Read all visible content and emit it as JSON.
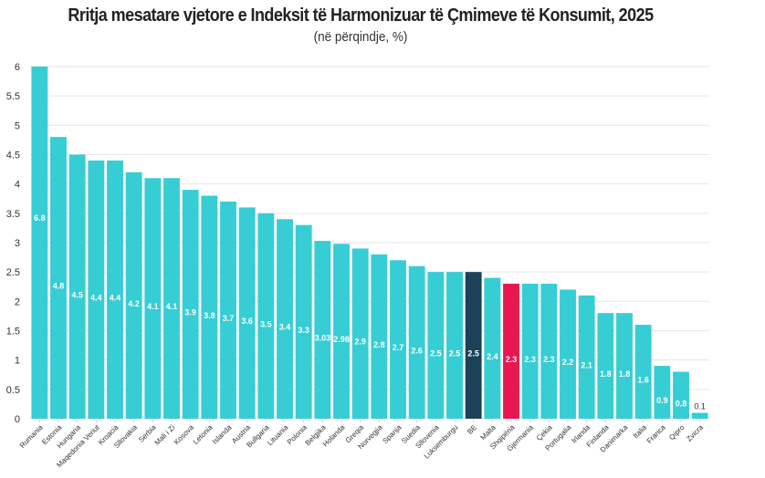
{
  "chart_data": {
    "type": "bar",
    "title": "Rritja mesatare vjetore e Indeksit të Harmonizuar të Çmimeve të Konsumit, 2025",
    "subtitle": "(në përqindje, %)",
    "xlabel": "",
    "ylabel": "",
    "ylim": [
      0,
      6
    ],
    "yticks": [
      0,
      0.5,
      1,
      1.5,
      2,
      2.5,
      3,
      3.5,
      4,
      4.5,
      5,
      5.5,
      6
    ],
    "grid": true,
    "legend": "none",
    "colors": {
      "default": "#37CDD5",
      "highlight_eu": "#1B4258",
      "highlight_albania": "#E8174F"
    },
    "categories": [
      "Rumania",
      "Estonia",
      "Hungaria",
      "Maqedonia Veriut",
      "Kroacia",
      "Sllovakia",
      "Serbia",
      "Mali i Zi",
      "Kosova",
      "Letonia",
      "Islanda",
      "Austria",
      "Bullgaria",
      "Lituania",
      "Polonia",
      "Belgjika",
      "Holanda",
      "Greqia",
      "Norvegjia",
      "Spanja",
      "Suedia",
      "Sllovenia",
      "Luksemburgu",
      "BE",
      "Malta",
      "Shqipëria",
      "Gjermania",
      "Çekia",
      "Portugalia",
      "Irlanda",
      "Finlanda",
      "Danimarka",
      "Italia",
      "Franca",
      "Qipro",
      "Zvicra"
    ],
    "values": [
      6.8,
      4.8,
      4.5,
      4.4,
      4.4,
      4.2,
      4.1,
      4.1,
      3.9,
      3.8,
      3.7,
      3.6,
      3.5,
      3.4,
      3.3,
      3.03,
      2.98,
      2.9,
      2.8,
      2.7,
      2.6,
      2.5,
      2.5,
      2.5,
      2.4,
      2.3,
      2.3,
      2.3,
      2.2,
      2.1,
      1.8,
      1.8,
      1.6,
      0.9,
      0.8,
      0.1
    ],
    "value_labels": [
      "6.8",
      "4.8",
      "4.5",
      "4.4",
      "4.4",
      "4.2",
      "4.1",
      "4.1",
      "3.9",
      "3.8",
      "3.7",
      "3.6",
      "3.5",
      "3.4",
      "3.3",
      "3.03",
      "2.98",
      "2.9",
      "2.8",
      "2.7",
      "2.6",
      "2.5",
      "2.5",
      "2.5",
      "2.4",
      "2.3",
      "2.3",
      "2.3",
      "2.2",
      "2.1",
      "1.8",
      "1.8",
      "1.6",
      "0.9",
      "0.8",
      "0.1"
    ],
    "bar_colors": [
      "default",
      "default",
      "default",
      "default",
      "default",
      "default",
      "default",
      "default",
      "default",
      "default",
      "default",
      "default",
      "default",
      "default",
      "default",
      "default",
      "default",
      "default",
      "default",
      "default",
      "default",
      "default",
      "default",
      "highlight_eu",
      "default",
      "highlight_albania",
      "default",
      "default",
      "default",
      "default",
      "default",
      "default",
      "default",
      "default",
      "default",
      "default"
    ],
    "annotations": [
      "Rumania bar is truncated at the axis maximum of 6 while labeled 6.8"
    ]
  }
}
